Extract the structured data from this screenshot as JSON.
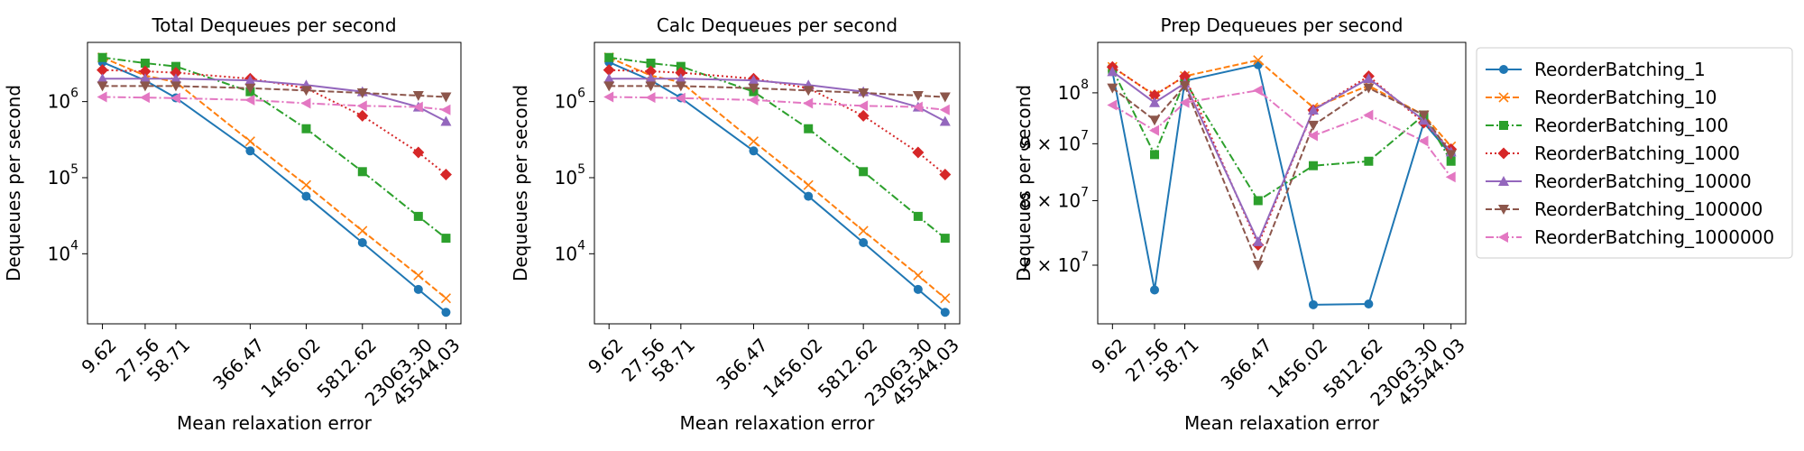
{
  "chart_data": {
    "type": "line",
    "x": [
      9.62,
      27.56,
      58.71,
      366.47,
      1456.02,
      5812.62,
      23063.3,
      45544.03
    ],
    "x_tick_labels": [
      "9.62",
      "27.56",
      "58.71",
      "366.47",
      "1456.02",
      "5812.62",
      "23063.30",
      "45544.03"
    ],
    "x_scale": "log",
    "y_scale": "log",
    "xlabel": "Mean relaxation error",
    "legend": {
      "placement": "outside-right"
    },
    "series_styles": [
      {
        "name": "ReorderBatching_1",
        "color": "#1f77b4",
        "marker": "circle",
        "dash": "solid"
      },
      {
        "name": "ReorderBatching_10",
        "color": "#ff7f0e",
        "marker": "x",
        "dash": "dashed"
      },
      {
        "name": "ReorderBatching_100",
        "color": "#2ca02c",
        "marker": "square",
        "dash": "dashdot"
      },
      {
        "name": "ReorderBatching_1000",
        "color": "#d62728",
        "marker": "diamond",
        "dash": "dotted"
      },
      {
        "name": "ReorderBatching_10000",
        "color": "#9467bd",
        "marker": "triangle-up",
        "dash": "solid"
      },
      {
        "name": "ReorderBatching_100000",
        "color": "#8c564b",
        "marker": "triangle-down",
        "dash": "dashed"
      },
      {
        "name": "ReorderBatching_1000000",
        "color": "#e377c2",
        "marker": "triangle-left",
        "dash": "dashdot"
      }
    ],
    "panels": [
      {
        "title": "Total Dequeues per second",
        "ylabel": "Dequeues per second",
        "ylim": [
          1200,
          6000000
        ],
        "y_ticks": [
          {
            "value": 10000,
            "base": "10",
            "exp": "4"
          },
          {
            "value": 100000,
            "base": "10",
            "exp": "5"
          },
          {
            "value": 1000000,
            "base": "10",
            "exp": "6"
          }
        ],
        "series": [
          {
            "name": "ReorderBatching_1",
            "values": [
              3300000,
              1900000,
              1120000,
              225000,
              57000,
              14000,
              3400,
              1700
            ]
          },
          {
            "name": "ReorderBatching_10",
            "values": [
              3800000,
              2200000,
              1800000,
              300000,
              80000,
              20000,
              5200,
              2600
            ]
          },
          {
            "name": "ReorderBatching_100",
            "values": [
              3800000,
              3200000,
              2900000,
              1350000,
              440000,
              120000,
              31000,
              16000
            ]
          },
          {
            "name": "ReorderBatching_1000",
            "values": [
              2600000,
              2500000,
              2400000,
              2000000,
              1500000,
              650000,
              215000,
              110000
            ]
          },
          {
            "name": "ReorderBatching_10000",
            "values": [
              2000000,
              2000000,
              2000000,
              1900000,
              1650000,
              1350000,
              850000,
              550000
            ]
          },
          {
            "name": "ReorderBatching_100000",
            "values": [
              1600000,
              1600000,
              1600000,
              1500000,
              1400000,
              1300000,
              1200000,
              1150000
            ]
          },
          {
            "name": "ReorderBatching_1000000",
            "values": [
              1150000,
              1130000,
              1110000,
              1050000,
              950000,
              880000,
              850000,
              780000
            ]
          }
        ]
      },
      {
        "title": "Calc Dequeues per second",
        "ylabel": "Dequeues per second",
        "ylim": [
          1200,
          6000000
        ],
        "y_ticks": [
          {
            "value": 10000,
            "base": "10",
            "exp": "4"
          },
          {
            "value": 100000,
            "base": "10",
            "exp": "5"
          },
          {
            "value": 1000000,
            "base": "10",
            "exp": "6"
          }
        ],
        "series": [
          {
            "name": "ReorderBatching_1",
            "values": [
              3300000,
              1900000,
              1120000,
              225000,
              57000,
              14000,
              3400,
              1700
            ]
          },
          {
            "name": "ReorderBatching_10",
            "values": [
              3800000,
              2200000,
              1800000,
              300000,
              80000,
              20000,
              5200,
              2600
            ]
          },
          {
            "name": "ReorderBatching_100",
            "values": [
              3800000,
              3200000,
              2900000,
              1350000,
              440000,
              120000,
              31000,
              16000
            ]
          },
          {
            "name": "ReorderBatching_1000",
            "values": [
              2600000,
              2500000,
              2400000,
              2000000,
              1500000,
              650000,
              215000,
              110000
            ]
          },
          {
            "name": "ReorderBatching_10000",
            "values": [
              2000000,
              2000000,
              2000000,
              1900000,
              1650000,
              1350000,
              850000,
              550000
            ]
          },
          {
            "name": "ReorderBatching_100000",
            "values": [
              1600000,
              1600000,
              1600000,
              1500000,
              1400000,
              1300000,
              1200000,
              1150000
            ]
          },
          {
            "name": "ReorderBatching_1000000",
            "values": [
              1150000,
              1130000,
              1110000,
              1050000,
              950000,
              880000,
              850000,
              780000
            ]
          }
        ]
      },
      {
        "title": "Prep Dequeues per second",
        "ylabel": "Dequeues per second",
        "ylim": [
          62000000,
          111000000
        ],
        "y_ticks": [
          {
            "value": 70000000,
            "base": "7 × 10",
            "exp": "7"
          },
          {
            "value": 80000000,
            "base": "8 × 10",
            "exp": "7"
          },
          {
            "value": 90000000,
            "base": "9 × 10",
            "exp": "7"
          },
          {
            "value": 100000000,
            "base": "10",
            "exp": "8"
          }
        ],
        "series": [
          {
            "name": "ReorderBatching_1",
            "values": [
              104500000,
              66500000,
              102500000,
              106000000,
              64500000,
              64600000,
              94000000,
              88000000
            ]
          },
          {
            "name": "ReorderBatching_10",
            "values": [
              105500000,
              99500000,
              103500000,
              107000000,
              97000000,
              101500000,
              95500000,
              89500000
            ]
          },
          {
            "name": "ReorderBatching_100",
            "values": [
              105000000,
              88000000,
              102500000,
              80000000,
              86000000,
              86800000,
              95500000,
              86800000
            ]
          },
          {
            "name": "ReorderBatching_1000",
            "values": [
              105500000,
              99500000,
              103500000,
              73000000,
              96500000,
              103500000,
              94000000,
              89000000
            ]
          },
          {
            "name": "ReorderBatching_10000",
            "values": [
              104500000,
              98000000,
              102000000,
              73500000,
              96500000,
              103000000,
              94500000,
              88500000
            ]
          },
          {
            "name": "ReorderBatching_100000",
            "values": [
              101000000,
              94500000,
              101500000,
              70000000,
              93500000,
              101000000,
              95500000,
              88000000
            ]
          },
          {
            "name": "ReorderBatching_1000000",
            "values": [
              97500000,
              92500000,
              98000000,
              100500000,
              91500000,
              95500000,
              90500000,
              84000000
            ]
          }
        ]
      }
    ]
  }
}
